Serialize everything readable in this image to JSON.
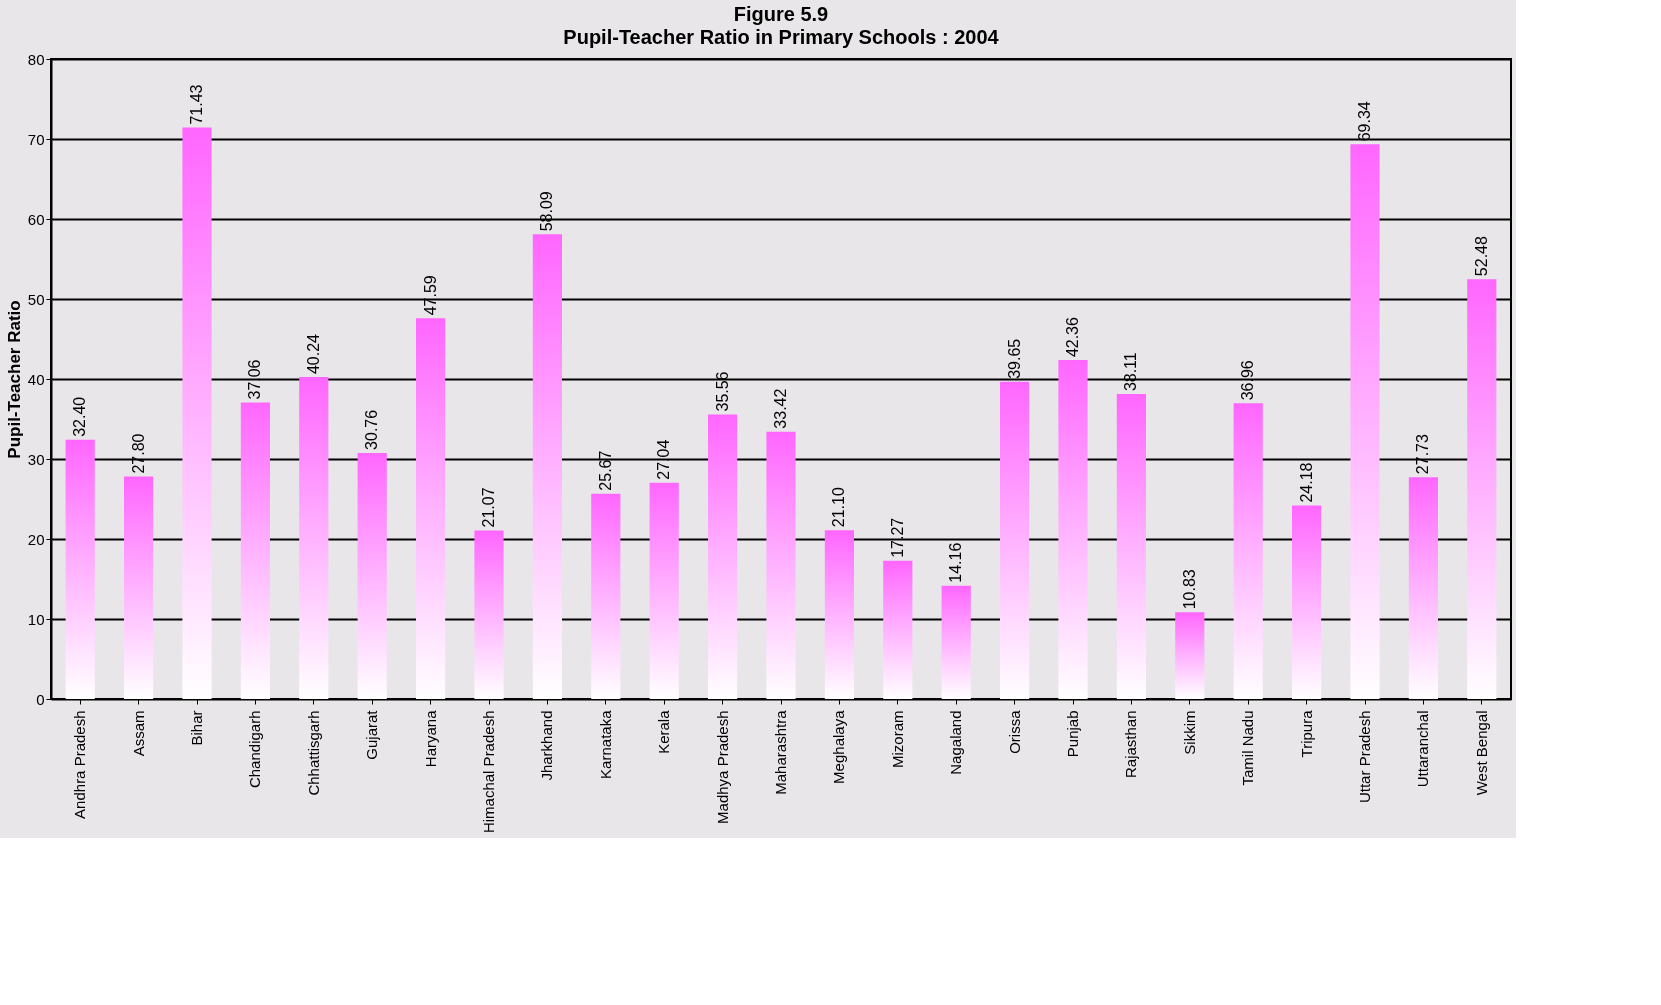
{
  "chart_data": {
    "type": "bar",
    "title": "Figure 5.9",
    "subtitle": "Pupil-Teacher Ratio in Primary Schools : 2004",
    "ylabel": "Pupil-Teacher Ratio",
    "categories": [
      "Andhra Pradesh",
      "Assam",
      "Bihar",
      "Chandigarh",
      "Chhattisgarh",
      "Gujarat",
      "Haryana",
      "Himachal Pradesh",
      "Jharkhand",
      "Karnataka",
      "Kerala",
      "Madhya Pradesh",
      "Maharashtra",
      "Meghalaya",
      "Mizoram",
      "Nagaland",
      "Orissa",
      "Punjab",
      "Rajasthan",
      "Sikkim",
      "Tamil Nadu",
      "Tripura",
      "Uttar Pradesh",
      "Uttaranchal",
      "West Bengal"
    ],
    "values": [
      32.4,
      27.8,
      71.43,
      37.06,
      40.24,
      30.76,
      47.59,
      21.07,
      58.09,
      25.67,
      27.04,
      35.56,
      33.42,
      21.1,
      17.27,
      14.16,
      39.65,
      42.36,
      38.11,
      10.83,
      36.96,
      24.18,
      69.34,
      27.73,
      52.48
    ],
    "value_labels": [
      "32.40",
      "27.80",
      "71.43",
      "37.06",
      "40.24",
      "30.76",
      "47.59",
      "21.07",
      "58.09",
      "25.67",
      "27.04",
      "35.56",
      "33.42",
      "21.10",
      "17.27",
      "14.16",
      "39.65",
      "42.36",
      "38.11",
      "10.83",
      "36.96",
      "24.18",
      "69.34",
      "27.73",
      "52.48"
    ],
    "color": "#ff66ff",
    "ylim": [
      0,
      80
    ],
    "yticks": [
      0,
      10,
      20,
      30,
      40,
      50,
      60,
      70,
      80
    ],
    "grid": "y"
  }
}
